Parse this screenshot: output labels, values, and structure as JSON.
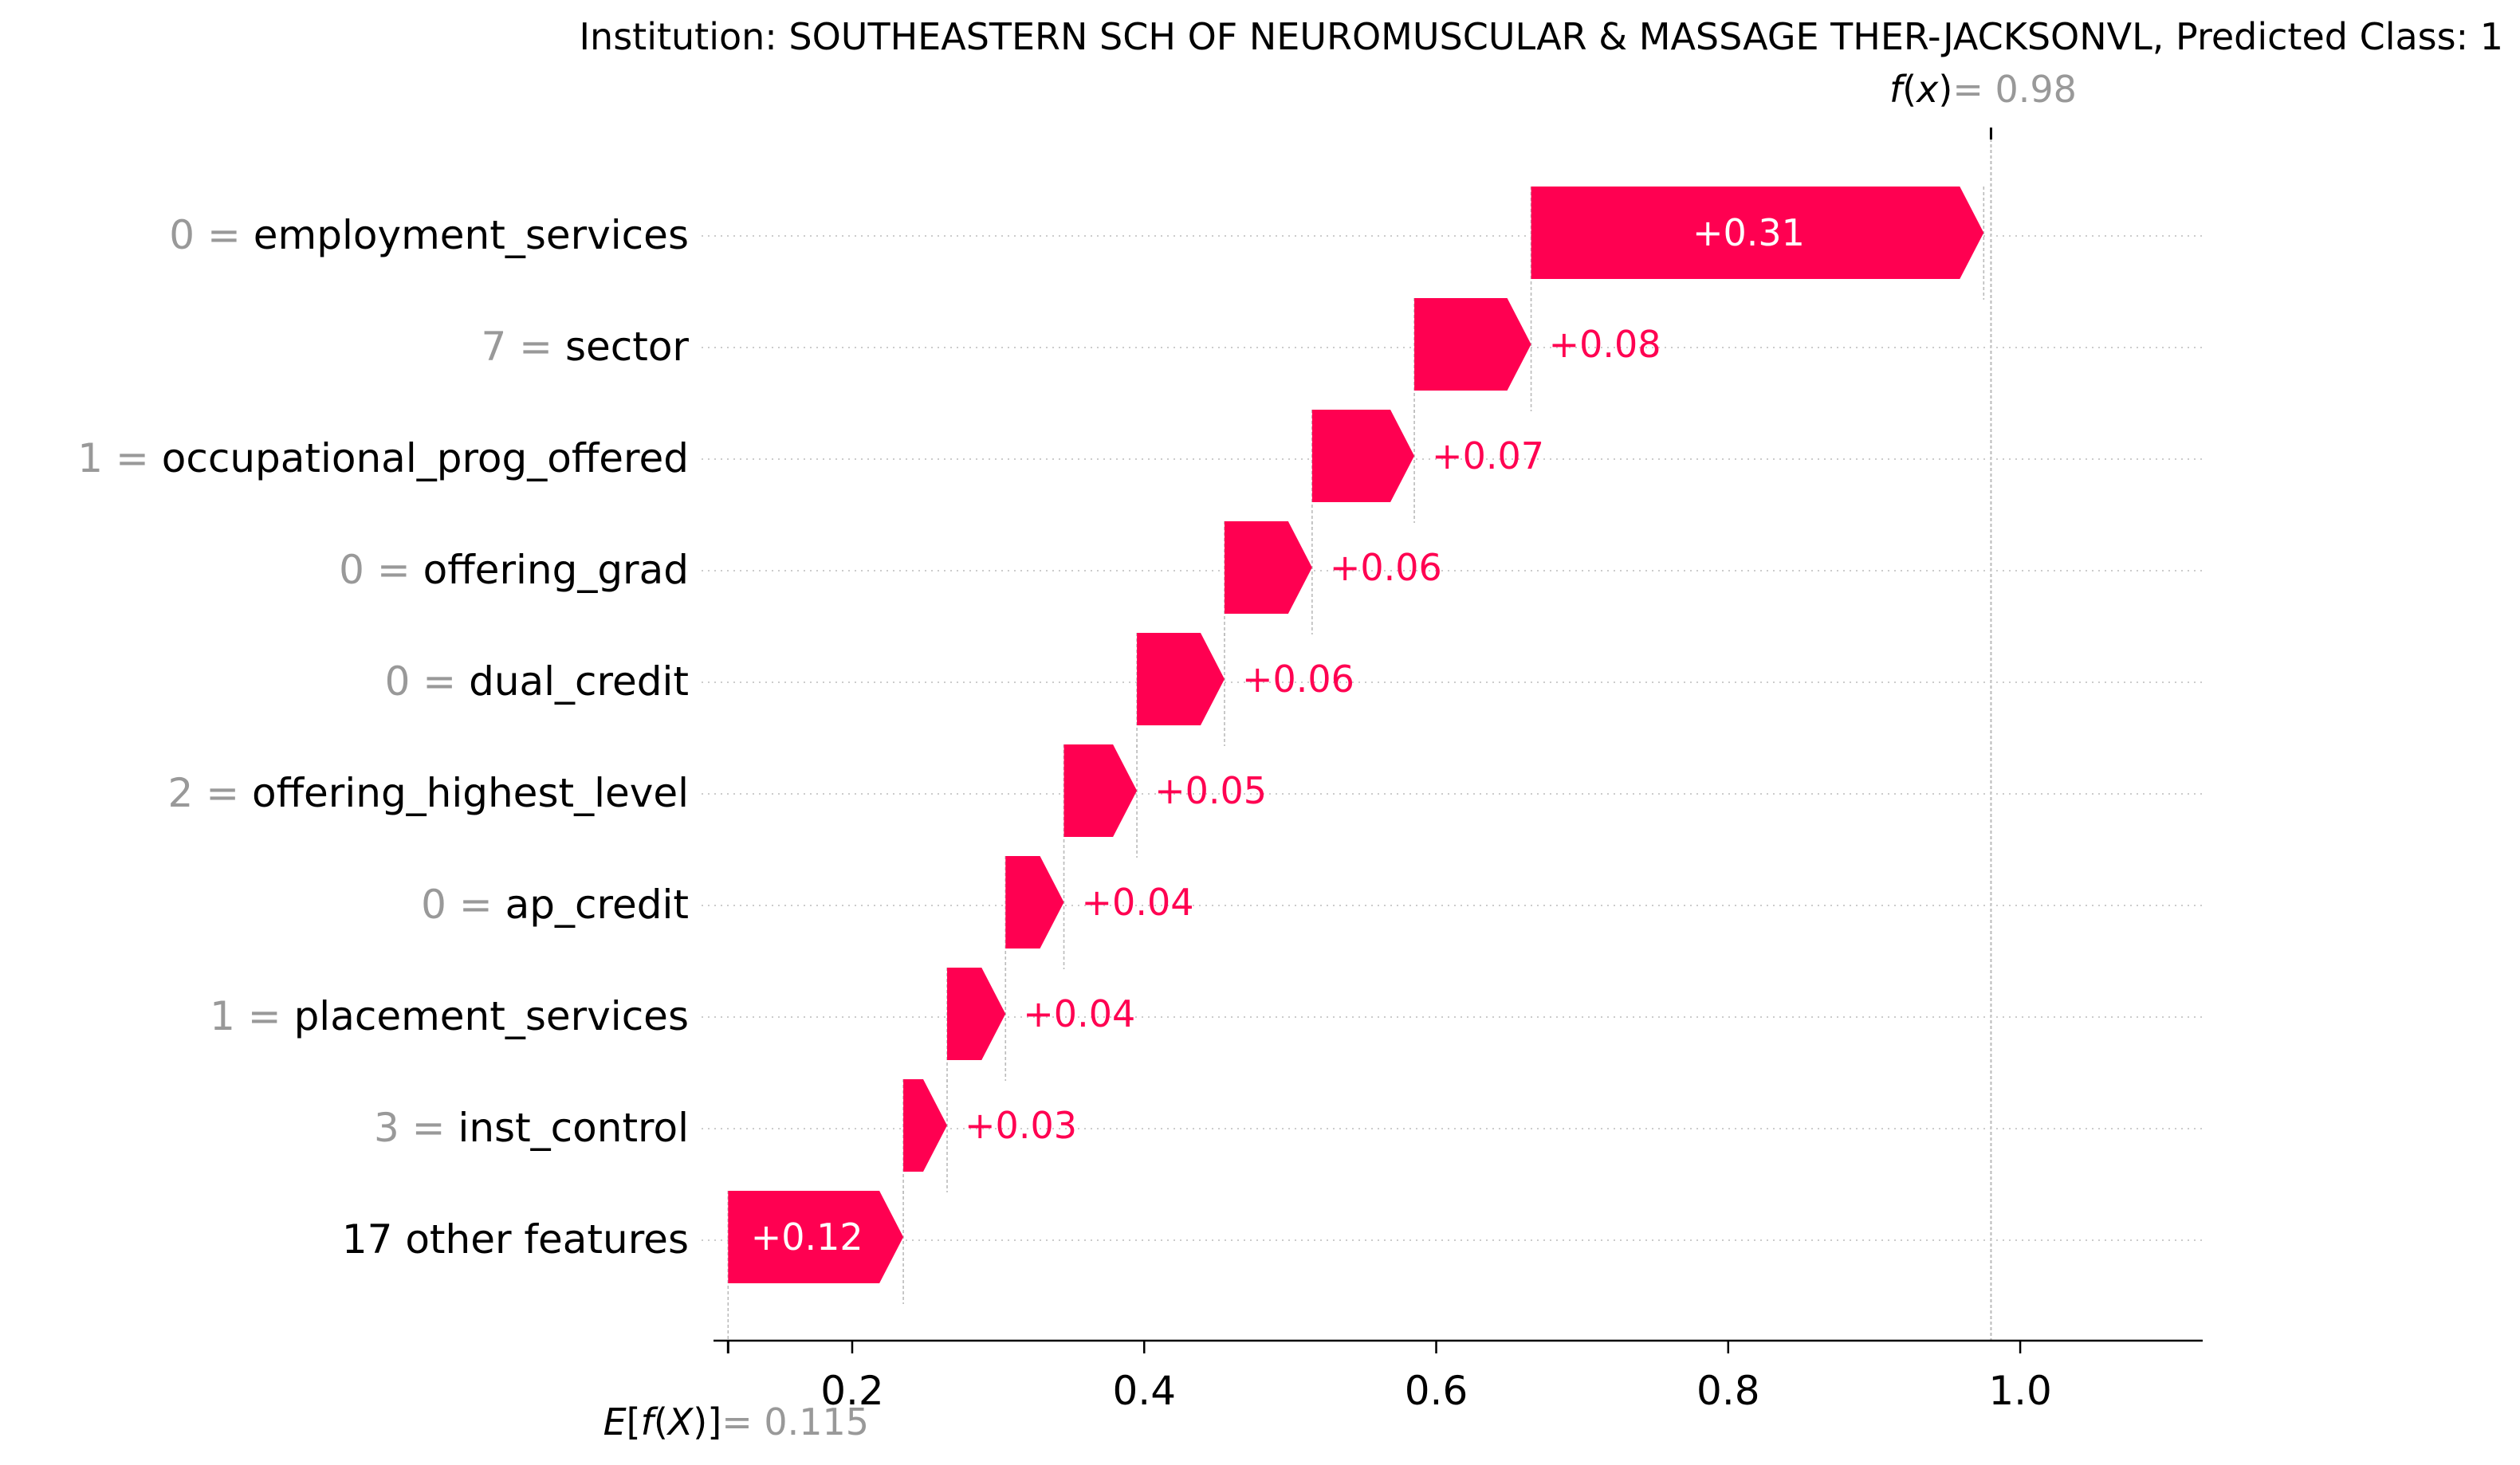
{
  "title": "Institution: SOUTHEASTERN SCH OF NEUROMUSCULAR & MASSAGE THER-JACKSONVL, Predicted Class: 1",
  "colors": {
    "positive": "#ff0051",
    "bar_text": "#ffffff",
    "muted": "#999999",
    "text": "#000000",
    "grid": "#cccccc"
  },
  "chart_data": {
    "type": "waterfall",
    "base_value": 0.115,
    "base_label": "= 0.115",
    "final_value": 0.98,
    "final_label": "= 0.98",
    "xlim": [
      0.105,
      1.125
    ],
    "xticks": [
      0.2,
      0.4,
      0.6,
      0.8,
      1.0
    ],
    "xtick_labels": [
      "0.2",
      "0.4",
      "0.6",
      "0.8",
      "1.0"
    ],
    "features": [
      {
        "value": "0",
        "name": "employment_services",
        "contribution": 0.31,
        "label": "+0.31"
      },
      {
        "value": "7",
        "name": "sector",
        "contribution": 0.08,
        "label": "+0.08"
      },
      {
        "value": "1",
        "name": "occupational_prog_offered",
        "contribution": 0.07,
        "label": "+0.07"
      },
      {
        "value": "0",
        "name": "offering_grad",
        "contribution": 0.06,
        "label": "+0.06"
      },
      {
        "value": "0",
        "name": "dual_credit",
        "contribution": 0.06,
        "label": "+0.06"
      },
      {
        "value": "2",
        "name": "offering_highest_level",
        "contribution": 0.05,
        "label": "+0.05"
      },
      {
        "value": "0",
        "name": "ap_credit",
        "contribution": 0.04,
        "label": "+0.04"
      },
      {
        "value": "1",
        "name": "placement_services",
        "contribution": 0.04,
        "label": "+0.04"
      },
      {
        "value": "3",
        "name": "inst_control",
        "contribution": 0.03,
        "label": "+0.03"
      },
      {
        "value": "",
        "name": "17 other features",
        "contribution": 0.12,
        "label": "+0.12"
      }
    ]
  }
}
